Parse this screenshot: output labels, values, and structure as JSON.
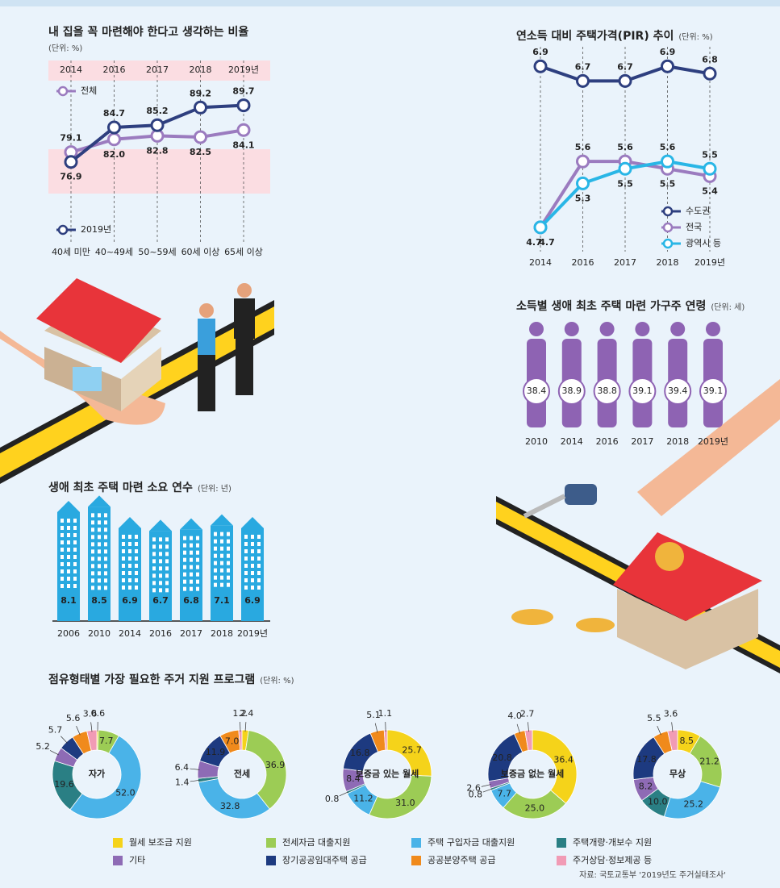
{
  "chart_data": [
    {
      "type": "line",
      "title": "내 집을 꼭 마련해야 한다고 생각하는 비율",
      "subtitle": "(단위: %)",
      "header_labels": [
        "2014",
        "2016",
        "2017",
        "2018",
        "2019년"
      ],
      "categories": [
        "40세 미만",
        "40~49세",
        "50~59세",
        "60세 이상",
        "65세 이상"
      ],
      "series": [
        {
          "name": "전체",
          "color": "#9b7bbf",
          "values": [
            79.1,
            82,
            82.8,
            82.5,
            84.1
          ],
          "value_labels": [
            "79.1",
            "82.0",
            "82.8",
            "82.5",
            "84.1"
          ]
        },
        {
          "name": "2019년",
          "color": "#2e3f7f",
          "values": [
            76.9,
            84.7,
            85.2,
            89.2,
            89.7
          ]
        }
      ],
      "ylim": [
        67,
        94
      ],
      "grid": true
    },
    {
      "type": "line",
      "title": "연소득 대비 주택가격(PIR) 추이",
      "subtitle": "(단위: %)",
      "categories": [
        "2014",
        "2016",
        "2017",
        "2018",
        "2019년"
      ],
      "series": [
        {
          "name": "수도권",
          "color": "#2e3f7f",
          "values": [
            6.9,
            6.7,
            6.7,
            6.9,
            6.8
          ]
        },
        {
          "name": "전국",
          "color": "#9b7bbf",
          "values": [
            4.7,
            5.6,
            5.6,
            5.5,
            5.4
          ]
        },
        {
          "name": "광역시 등",
          "color": "#29b6e6",
          "values": [
            4.7,
            5.3,
            5.5,
            5.6,
            5.5
          ]
        }
      ],
      "ylim": [
        4.5,
        7.2
      ],
      "grid": true
    },
    {
      "type": "pictogram",
      "title": "소득별 생애 최초 주택 마련 가구주 연령",
      "subtitle": "(단위: 세)",
      "categories": [
        "2010",
        "2014",
        "2016",
        "2017",
        "2018",
        "2019년"
      ],
      "values": [
        38.4,
        38.9,
        38.8,
        39.1,
        39.4,
        39.1
      ],
      "color": "#8e63b3"
    },
    {
      "type": "bar",
      "title": "생애 최초 주택 마련 소요 연수",
      "subtitle": "(단위: 년)",
      "categories": [
        "2006",
        "2010",
        "2014",
        "2016",
        "2017",
        "2018",
        "2019년"
      ],
      "values": [
        8.1,
        8.5,
        6.9,
        6.7,
        6.8,
        7.1,
        6.9
      ],
      "color": "#29a9e0",
      "ylim": [
        0,
        9
      ]
    },
    {
      "type": "donut",
      "title": "점유형태별 가장 필요한 주거 지원 프로그램",
      "subtitle": "(단위: %)",
      "categories": [
        "월세 보조금 지원",
        "전세자금 대출지원",
        "주택 구입자금 대출지원",
        "주택개량·개보수 지원",
        "기타",
        "장기공공임대주택 공급",
        "공공분양주택 공급",
        "주거상담·정보제공 등"
      ],
      "colors": [
        "#f5d31a",
        "#9ccc55",
        "#4ab3e8",
        "#2a7f84",
        "#8e6bb5",
        "#1d3a80",
        "#f08a1c",
        "#f19bb5"
      ],
      "series": [
        {
          "name": "자가",
          "values": [
            0.6,
            7.7,
            52,
            19.6,
            5.2,
            5.7,
            5.6,
            3.6
          ],
          "value_labels": [
            "0.6",
            "7.7",
            "52.0",
            "19.6",
            "5.2",
            "5.7",
            "5.6",
            "3.6"
          ]
        },
        {
          "name": "전세",
          "values": [
            2.4,
            36.9,
            32.8,
            1.4,
            6.4,
            11.9,
            7,
            1.2
          ],
          "value_labels": [
            "2.4",
            "36.9",
            "32.8",
            "1.4",
            "6.4",
            "11.9",
            "7.0",
            "1.2"
          ]
        },
        {
          "name": "보증금 있는 월세",
          "values": [
            25.7,
            31,
            11.2,
            0.8,
            8.4,
            16.8,
            5.1,
            1.1
          ],
          "value_labels": [
            "25.7",
            "31.0",
            "11.2",
            "0.8",
            "8.4",
            "16.8",
            "5.1",
            "1.1"
          ]
        },
        {
          "name": "보증금 없는 월세",
          "values": [
            36.4,
            25,
            7.7,
            0.8,
            2.6,
            20.8,
            4,
            2.7
          ],
          "value_labels": [
            "36.4",
            "25.0",
            "7.7",
            "0.8",
            "2.6",
            "20.8",
            "4.0",
            "2.7"
          ]
        },
        {
          "name": "무상",
          "values": [
            8.5,
            21.2,
            25.2,
            10,
            8.2,
            17.8,
            5.5,
            3.6
          ],
          "value_labels": [
            "8.5",
            "21.2",
            "25.2",
            "10.0",
            "8.2",
            "17.8",
            "5.5",
            "3.6"
          ]
        }
      ]
    }
  ],
  "source": "자료: 국토교통부 '2019년도 주거실태조사'"
}
